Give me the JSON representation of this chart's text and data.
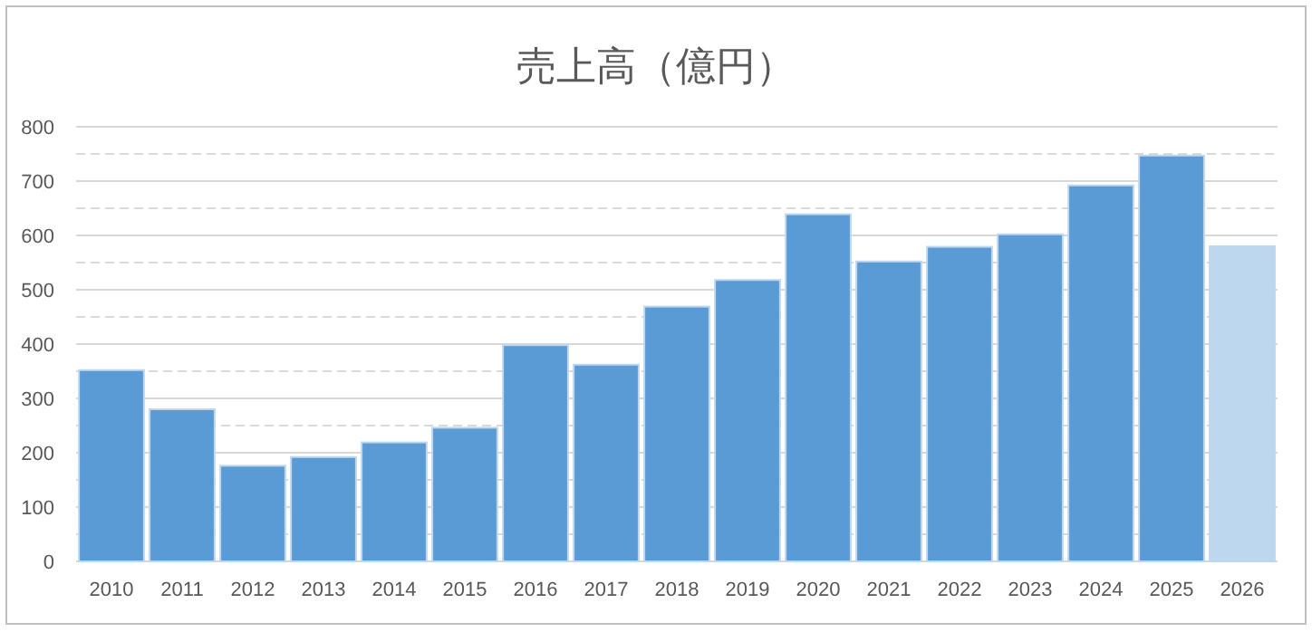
{
  "chart_data": {
    "type": "bar",
    "title": "売上高（億円）",
    "categories": [
      "2010",
      "2011",
      "2012",
      "2013",
      "2014",
      "2015",
      "2016",
      "2017",
      "2018",
      "2019",
      "2020",
      "2021",
      "2022",
      "2023",
      "2024",
      "2025",
      "2026"
    ],
    "values": [
      352,
      280,
      176,
      192,
      219,
      246,
      398,
      362,
      469,
      518,
      639,
      552,
      579,
      602,
      692,
      747,
      580
    ],
    "colors": [
      "#5b9bd5",
      "#5b9bd5",
      "#5b9bd5",
      "#5b9bd5",
      "#5b9bd5",
      "#5b9bd5",
      "#5b9bd5",
      "#5b9bd5",
      "#5b9bd5",
      "#5b9bd5",
      "#5b9bd5",
      "#5b9bd5",
      "#5b9bd5",
      "#5b9bd5",
      "#5b9bd5",
      "#5b9bd5",
      "#bdd7ee"
    ],
    "ylim": [
      0,
      800
    ],
    "yticks": [
      0,
      {
        "value": 50,
        "label": null
      },
      100,
      {
        "value": 150,
        "label": null
      },
      200,
      {
        "value": 250,
        "label": null
      },
      300,
      {
        "value": 350,
        "label": null
      },
      400,
      {
        "value": 450,
        "label": null
      },
      500,
      {
        "value": 550,
        "label": null
      },
      600,
      {
        "value": 650,
        "label": null
      },
      700,
      {
        "value": 750,
        "label": null
      },
      800
    ],
    "grid": "y"
  }
}
